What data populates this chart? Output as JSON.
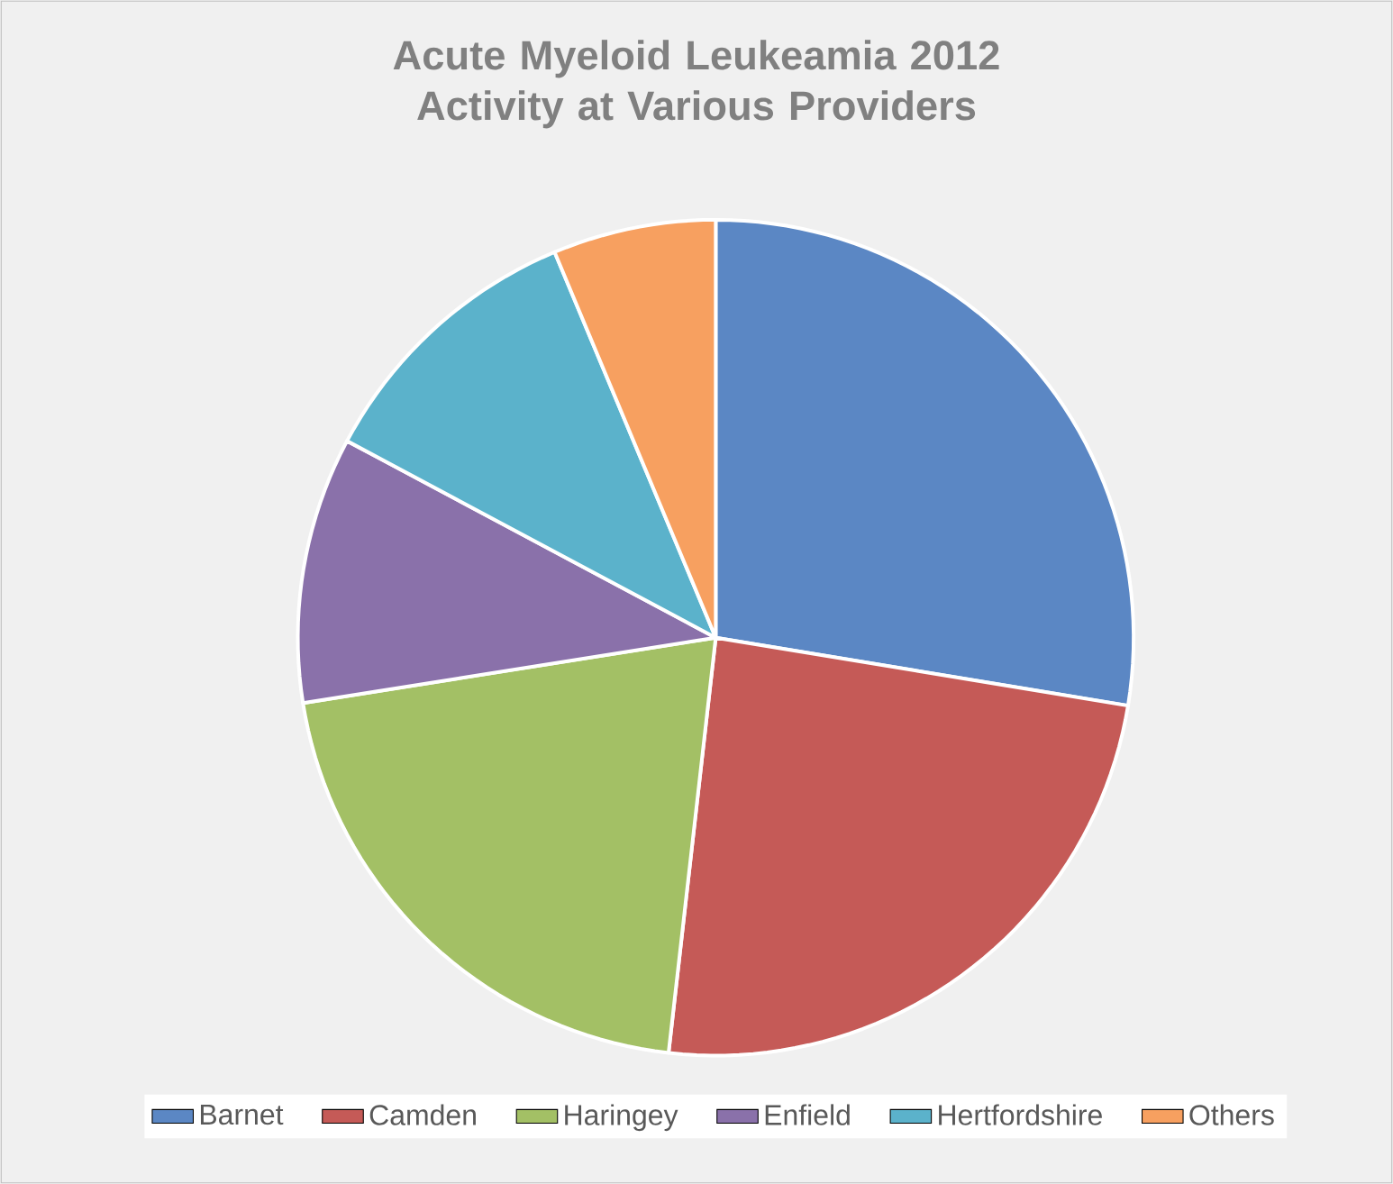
{
  "chart_data": {
    "type": "pie",
    "title": "Acute Myeloid Leukeamia 2012 Activity at Various Providers",
    "categories": [
      "Barnet",
      "Camden",
      "Haringey",
      "Enfield",
      "Hertfordshire",
      "Others"
    ],
    "values": [
      27.6,
      24.2,
      20.7,
      10.3,
      10.9,
      6.3
    ],
    "colors": [
      "#5b87c4",
      "#c55a57",
      "#a3c065",
      "#8a71aa",
      "#5bb2cb",
      "#f7a060"
    ],
    "legend": "bottom"
  }
}
